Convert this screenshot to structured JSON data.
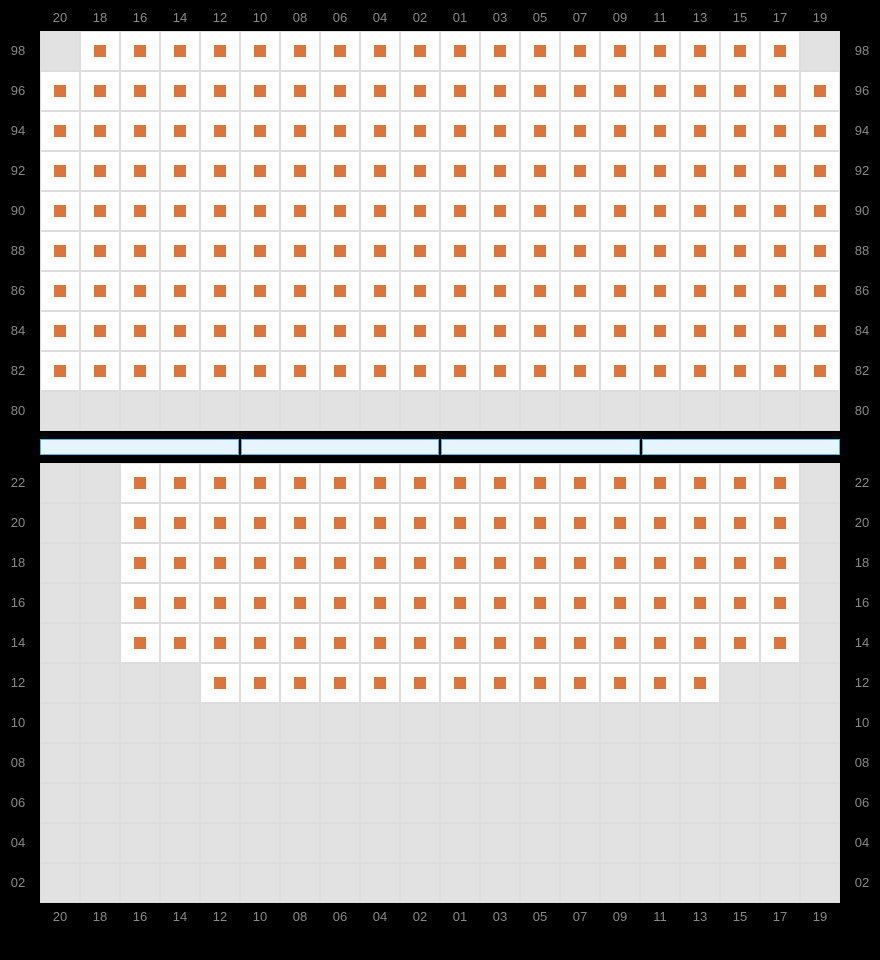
{
  "columns": [
    "20",
    "18",
    "16",
    "14",
    "12",
    "10",
    "08",
    "06",
    "04",
    "02",
    "01",
    "03",
    "05",
    "07",
    "09",
    "11",
    "13",
    "15",
    "17",
    "19"
  ],
  "colors": {
    "seat_available": "#d8763e",
    "divider_fill": "#e6f5fd",
    "divider_border": "#5ab4e0",
    "grid_empty": "#e2e2e2",
    "grid_seat_bg": "#ffffff",
    "grid_line": "#dddddd",
    "label": "#888888"
  },
  "divider_segments": 4,
  "top_section": {
    "rows": [
      {
        "label": "98",
        "cells": [
          0,
          1,
          1,
          1,
          1,
          1,
          1,
          1,
          1,
          1,
          1,
          1,
          1,
          1,
          1,
          1,
          1,
          1,
          1,
          0
        ]
      },
      {
        "label": "96",
        "cells": [
          1,
          1,
          1,
          1,
          1,
          1,
          1,
          1,
          1,
          1,
          1,
          1,
          1,
          1,
          1,
          1,
          1,
          1,
          1,
          1
        ]
      },
      {
        "label": "94",
        "cells": [
          1,
          1,
          1,
          1,
          1,
          1,
          1,
          1,
          1,
          1,
          1,
          1,
          1,
          1,
          1,
          1,
          1,
          1,
          1,
          1
        ]
      },
      {
        "label": "92",
        "cells": [
          1,
          1,
          1,
          1,
          1,
          1,
          1,
          1,
          1,
          1,
          1,
          1,
          1,
          1,
          1,
          1,
          1,
          1,
          1,
          1
        ]
      },
      {
        "label": "90",
        "cells": [
          1,
          1,
          1,
          1,
          1,
          1,
          1,
          1,
          1,
          1,
          1,
          1,
          1,
          1,
          1,
          1,
          1,
          1,
          1,
          1
        ]
      },
      {
        "label": "88",
        "cells": [
          1,
          1,
          1,
          1,
          1,
          1,
          1,
          1,
          1,
          1,
          1,
          1,
          1,
          1,
          1,
          1,
          1,
          1,
          1,
          1
        ]
      },
      {
        "label": "86",
        "cells": [
          1,
          1,
          1,
          1,
          1,
          1,
          1,
          1,
          1,
          1,
          1,
          1,
          1,
          1,
          1,
          1,
          1,
          1,
          1,
          1
        ]
      },
      {
        "label": "84",
        "cells": [
          1,
          1,
          1,
          1,
          1,
          1,
          1,
          1,
          1,
          1,
          1,
          1,
          1,
          1,
          1,
          1,
          1,
          1,
          1,
          1
        ]
      },
      {
        "label": "82",
        "cells": [
          1,
          1,
          1,
          1,
          1,
          1,
          1,
          1,
          1,
          1,
          1,
          1,
          1,
          1,
          1,
          1,
          1,
          1,
          1,
          1
        ]
      },
      {
        "label": "80",
        "cells": [
          0,
          0,
          0,
          0,
          0,
          0,
          0,
          0,
          0,
          0,
          0,
          0,
          0,
          0,
          0,
          0,
          0,
          0,
          0,
          0
        ]
      }
    ]
  },
  "bottom_section": {
    "rows": [
      {
        "label": "22",
        "cells": [
          0,
          0,
          1,
          1,
          1,
          1,
          1,
          1,
          1,
          1,
          1,
          1,
          1,
          1,
          1,
          1,
          1,
          1,
          1,
          0
        ]
      },
      {
        "label": "20",
        "cells": [
          0,
          0,
          1,
          1,
          1,
          1,
          1,
          1,
          1,
          1,
          1,
          1,
          1,
          1,
          1,
          1,
          1,
          1,
          1,
          0
        ]
      },
      {
        "label": "18",
        "cells": [
          0,
          0,
          1,
          1,
          1,
          1,
          1,
          1,
          1,
          1,
          1,
          1,
          1,
          1,
          1,
          1,
          1,
          1,
          1,
          0
        ]
      },
      {
        "label": "16",
        "cells": [
          0,
          0,
          1,
          1,
          1,
          1,
          1,
          1,
          1,
          1,
          1,
          1,
          1,
          1,
          1,
          1,
          1,
          1,
          1,
          0
        ]
      },
      {
        "label": "14",
        "cells": [
          0,
          0,
          1,
          1,
          1,
          1,
          1,
          1,
          1,
          1,
          1,
          1,
          1,
          1,
          1,
          1,
          1,
          1,
          1,
          0
        ]
      },
      {
        "label": "12",
        "cells": [
          0,
          0,
          0,
          0,
          1,
          1,
          1,
          1,
          1,
          1,
          1,
          1,
          1,
          1,
          1,
          1,
          1,
          0,
          0,
          0
        ]
      },
      {
        "label": "10",
        "cells": [
          0,
          0,
          0,
          0,
          0,
          0,
          0,
          0,
          0,
          0,
          0,
          0,
          0,
          0,
          0,
          0,
          0,
          0,
          0,
          0
        ]
      },
      {
        "label": "08",
        "cells": [
          0,
          0,
          0,
          0,
          0,
          0,
          0,
          0,
          0,
          0,
          0,
          0,
          0,
          0,
          0,
          0,
          0,
          0,
          0,
          0
        ]
      },
      {
        "label": "06",
        "cells": [
          0,
          0,
          0,
          0,
          0,
          0,
          0,
          0,
          0,
          0,
          0,
          0,
          0,
          0,
          0,
          0,
          0,
          0,
          0,
          0
        ]
      },
      {
        "label": "04",
        "cells": [
          0,
          0,
          0,
          0,
          0,
          0,
          0,
          0,
          0,
          0,
          0,
          0,
          0,
          0,
          0,
          0,
          0,
          0,
          0,
          0
        ]
      },
      {
        "label": "02",
        "cells": [
          0,
          0,
          0,
          0,
          0,
          0,
          0,
          0,
          0,
          0,
          0,
          0,
          0,
          0,
          0,
          0,
          0,
          0,
          0,
          0
        ]
      }
    ]
  }
}
